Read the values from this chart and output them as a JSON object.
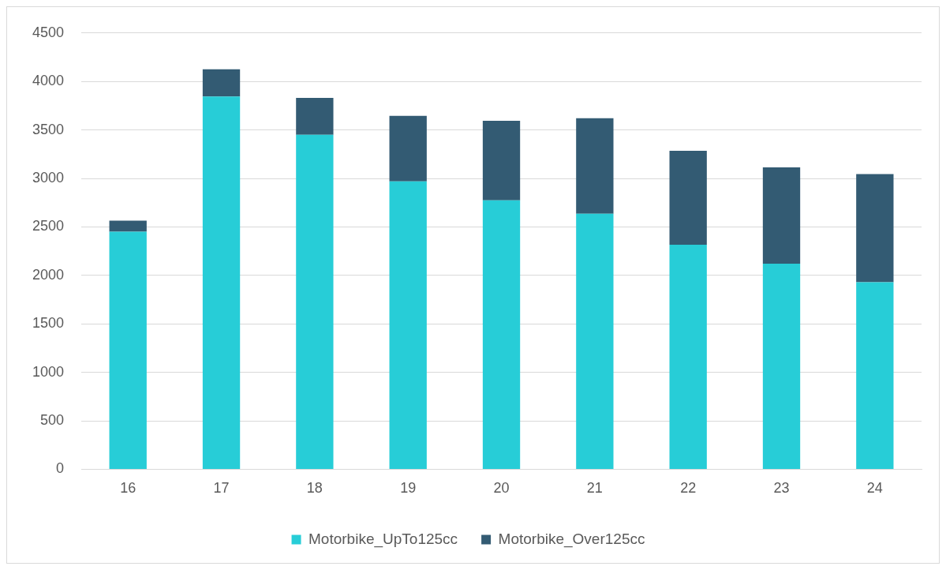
{
  "chart_data": {
    "type": "bar",
    "stacked": true,
    "categories": [
      "16",
      "17",
      "18",
      "19",
      "20",
      "21",
      "22",
      "23",
      "24"
    ],
    "series": [
      {
        "name": "Motorbike_UpTo125cc",
        "color": "#27cdd7",
        "values": [
          2450,
          3845,
          3450,
          2970,
          2775,
          2635,
          2315,
          2120,
          1930
        ]
      },
      {
        "name": "Motorbike_Over125cc",
        "color": "#335b73",
        "values": [
          115,
          280,
          380,
          675,
          820,
          985,
          970,
          995,
          1115
        ]
      }
    ],
    "ylim": [
      0,
      4500
    ],
    "yticks": [
      0,
      500,
      1000,
      1500,
      2000,
      2500,
      3000,
      3500,
      4000,
      4500
    ],
    "grid": "y",
    "legend": "bottom"
  }
}
